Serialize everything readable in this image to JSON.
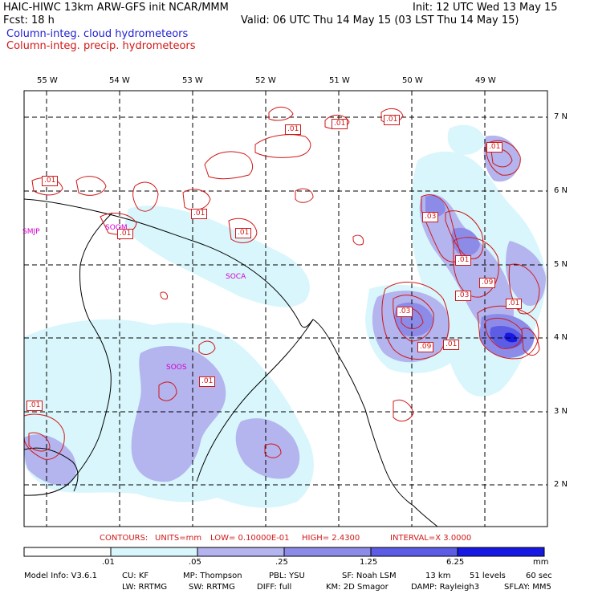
{
  "header": {
    "title_left": "HAIC-HIWC 13km ARW-GFS init    NCAR/MMM",
    "init": "Init: 12 UTC Wed 13 May 15",
    "fcst": "Fcst:    18 h",
    "valid": "Valid: 06 UTC Thu 14 May 15 (03 LST Thu 14 May 15)",
    "legend_cloud": "Column-integ. cloud hydrometeors",
    "legend_precip": "Column-integ. precip. hydrometeors"
  },
  "map": {
    "lon_ticks": [
      "55 W",
      "54 W",
      "53 W",
      "52 W",
      "51 W",
      "50 W",
      "49 W"
    ],
    "lat_ticks": [
      "7 N",
      "6 N",
      "5 N",
      "4 N",
      "3 N",
      "2 N"
    ],
    "stations": [
      "SMJP",
      "SOOM",
      "SOCA",
      "SOOS"
    ],
    "contour_labels": [
      ".01",
      ".01",
      ".01",
      ".01",
      ".01",
      ".01",
      ".01",
      ".03",
      ".01",
      ".01",
      ".09",
      ".03",
      ".03",
      ".01",
      ".09",
      ".01",
      ".01",
      ".01"
    ],
    "colors": {
      "shade1": "#d8f6fb",
      "shade2": "#b4b4ee",
      "shade3": "#8c8ce8",
      "shade4": "#5c5ce4",
      "shade5": "#1818e4",
      "contour": "#d01818",
      "station": "#d000d0"
    }
  },
  "contours_info": {
    "contours": "CONTOURS:",
    "units": "UNITS=mm",
    "low": "LOW= 0.10000E-01",
    "high": "HIGH=  2.4300",
    "interval": "INTERVAL=X  3.0000"
  },
  "colorbar": {
    "labels": [
      ".01",
      ".05",
      ".25",
      "1.25",
      "6.25"
    ],
    "unit": "mm"
  },
  "model_info": {
    "line1": [
      "Model Info: V3.6.1",
      "CU: KF",
      "MP: Thompson",
      "PBL: YSU",
      "SF: Noah LSM",
      "13 km",
      "51 levels",
      "60 sec"
    ],
    "line2": [
      "LW: RRTMG",
      "SW: RRTMG",
      "DIFF: full",
      "KM: 2D Smagor",
      "DAMP: Rayleigh3",
      "SFLAY: MM5"
    ]
  }
}
